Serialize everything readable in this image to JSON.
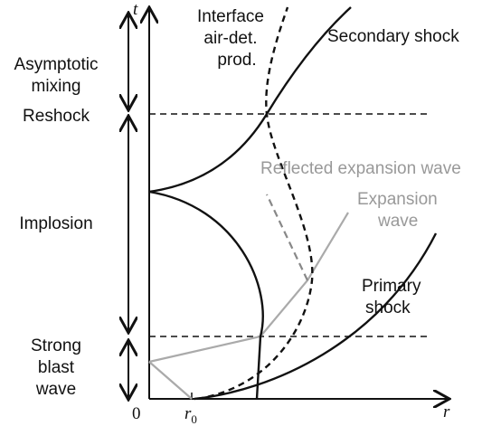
{
  "axes": {
    "t": "t",
    "r": "r",
    "origin": "0",
    "r0": "r",
    "r0_sub": "0"
  },
  "phases": [
    {
      "lines": [
        "Asymptotic",
        "mixing"
      ]
    },
    {
      "lines": [
        "Reshock"
      ]
    },
    {
      "lines": [
        "Implosion"
      ]
    },
    {
      "lines": [
        "Strong",
        "blast",
        "wave"
      ]
    }
  ],
  "labels": {
    "interface": [
      "Interface",
      "air-det.",
      "prod."
    ],
    "secondary_shock": "Secondary shock",
    "reflected_expansion": "Reflected expansion wave",
    "expansion": [
      "Expansion",
      "wave"
    ],
    "primary_shock": [
      "Primary",
      "shock"
    ]
  }
}
